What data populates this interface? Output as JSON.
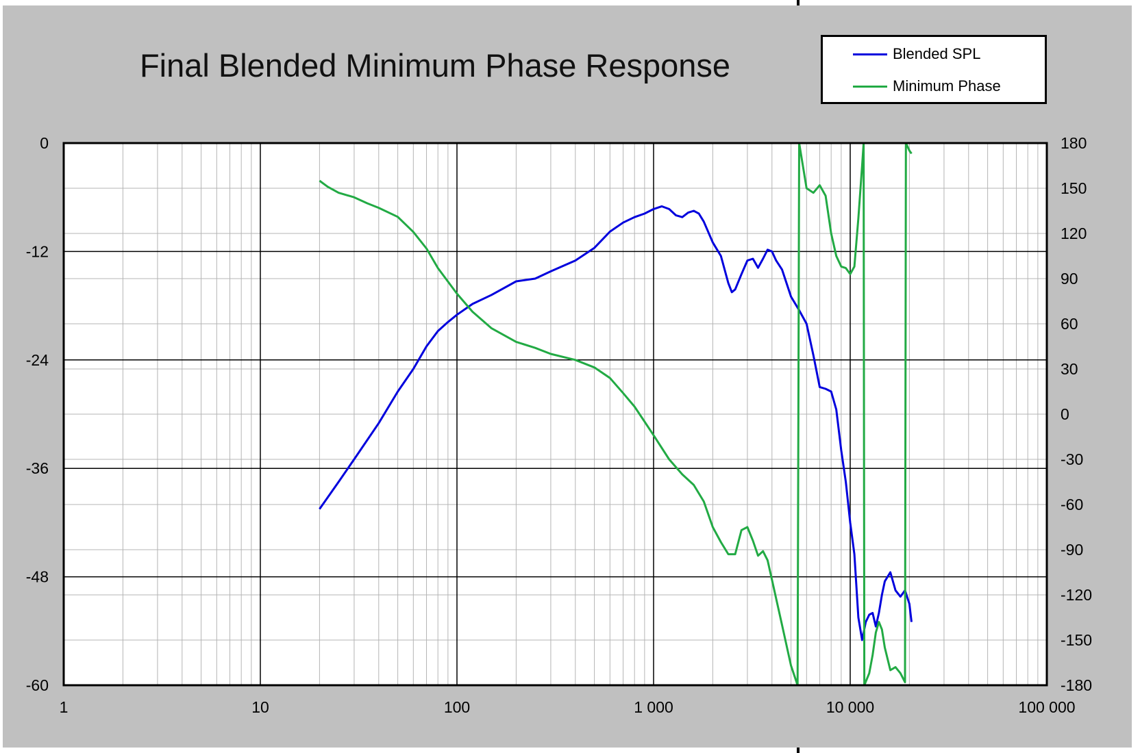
{
  "chart_data": {
    "type": "line",
    "title": "Final Blended Minimum Phase Response",
    "xlabel": "",
    "ylabel": "",
    "y2label": "",
    "x_scale": "log",
    "xlim": [
      1,
      100000
    ],
    "ylim": [
      -60,
      0
    ],
    "y2lim": [
      -180,
      180
    ],
    "x_tick_values": [
      1,
      10,
      100,
      1000,
      10000,
      100000
    ],
    "x_tick_labels": [
      "1",
      "10",
      "100",
      "1 000",
      "10 000",
      "100 000"
    ],
    "y_ticks": [
      0,
      -12,
      -24,
      -36,
      -48,
      -60
    ],
    "y2_ticks": [
      180,
      150,
      120,
      90,
      60,
      30,
      0,
      -30,
      -60,
      -90,
      -120,
      -150,
      -180
    ],
    "grid": true,
    "legend_position": "top-right",
    "series": [
      {
        "name": "Blended SPL",
        "axis": "left",
        "color": "#0000dd",
        "points": [
          [
            20,
            -40.5
          ],
          [
            25,
            -37.5
          ],
          [
            30,
            -35
          ],
          [
            40,
            -31
          ],
          [
            50,
            -27.5
          ],
          [
            60,
            -25
          ],
          [
            70,
            -22.5
          ],
          [
            80,
            -20.8
          ],
          [
            90,
            -19.8
          ],
          [
            100,
            -19
          ],
          [
            120,
            -17.8
          ],
          [
            150,
            -16.8
          ],
          [
            200,
            -15.3
          ],
          [
            250,
            -15
          ],
          [
            300,
            -14.2
          ],
          [
            400,
            -13
          ],
          [
            500,
            -11.6
          ],
          [
            600,
            -9.8
          ],
          [
            700,
            -8.8
          ],
          [
            800,
            -8.2
          ],
          [
            900,
            -7.8
          ],
          [
            1000,
            -7.3
          ],
          [
            1100,
            -7
          ],
          [
            1200,
            -7.3
          ],
          [
            1300,
            -8
          ],
          [
            1400,
            -8.2
          ],
          [
            1500,
            -7.7
          ],
          [
            1600,
            -7.5
          ],
          [
            1700,
            -7.8
          ],
          [
            1800,
            -8.7
          ],
          [
            2000,
            -11
          ],
          [
            2200,
            -12.5
          ],
          [
            2400,
            -15.5
          ],
          [
            2500,
            -16.5
          ],
          [
            2600,
            -16.2
          ],
          [
            2800,
            -14.5
          ],
          [
            3000,
            -13
          ],
          [
            3200,
            -12.8
          ],
          [
            3400,
            -13.8
          ],
          [
            3600,
            -12.8
          ],
          [
            3800,
            -11.8
          ],
          [
            4000,
            -12
          ],
          [
            4200,
            -13
          ],
          [
            4500,
            -14
          ],
          [
            5000,
            -17
          ],
          [
            5500,
            -18.5
          ],
          [
            6000,
            -20
          ],
          [
            6500,
            -23.5
          ],
          [
            7000,
            -27
          ],
          [
            7500,
            -27.2
          ],
          [
            8000,
            -27.5
          ],
          [
            8500,
            -29.5
          ],
          [
            9000,
            -34
          ],
          [
            9500,
            -37.5
          ],
          [
            10000,
            -42
          ],
          [
            10500,
            -45.5
          ],
          [
            11000,
            -52.5
          ],
          [
            11500,
            -55
          ],
          [
            12000,
            -53
          ],
          [
            12500,
            -52.2
          ],
          [
            13000,
            -52
          ],
          [
            13500,
            -53.5
          ],
          [
            14000,
            -52
          ],
          [
            14500,
            -50
          ],
          [
            15000,
            -48.5
          ],
          [
            16000,
            -47.5
          ],
          [
            17000,
            -49.5
          ],
          [
            18000,
            -50.2
          ],
          [
            19000,
            -49.5
          ],
          [
            20000,
            -51
          ],
          [
            20500,
            -53
          ]
        ]
      },
      {
        "name": "Minimum Phase",
        "axis": "right",
        "color": "#22aa44",
        "points": [
          [
            20,
            155
          ],
          [
            22,
            151
          ],
          [
            25,
            147
          ],
          [
            30,
            144
          ],
          [
            35,
            140
          ],
          [
            40,
            137
          ],
          [
            50,
            131
          ],
          [
            60,
            121
          ],
          [
            70,
            110
          ],
          [
            80,
            97
          ],
          [
            90,
            88
          ],
          [
            100,
            80
          ],
          [
            120,
            68
          ],
          [
            150,
            57
          ],
          [
            200,
            48
          ],
          [
            250,
            44
          ],
          [
            300,
            40
          ],
          [
            400,
            36
          ],
          [
            500,
            31
          ],
          [
            600,
            24
          ],
          [
            700,
            14
          ],
          [
            800,
            5
          ],
          [
            900,
            -5
          ],
          [
            1000,
            -14
          ],
          [
            1200,
            -30
          ],
          [
            1400,
            -40
          ],
          [
            1600,
            -47
          ],
          [
            1800,
            -58
          ],
          [
            2000,
            -75
          ],
          [
            2200,
            -85
          ],
          [
            2400,
            -93
          ],
          [
            2600,
            -93
          ],
          [
            2800,
            -77
          ],
          [
            3000,
            -75
          ],
          [
            3200,
            -84
          ],
          [
            3400,
            -94
          ],
          [
            3600,
            -91
          ],
          [
            3800,
            -97
          ],
          [
            4000,
            -110
          ],
          [
            4500,
            -140
          ],
          [
            5000,
            -167
          ],
          [
            5400,
            -180
          ],
          [
            5500,
            180
          ],
          [
            6000,
            150
          ],
          [
            6500,
            147
          ],
          [
            7000,
            152
          ],
          [
            7500,
            145
          ],
          [
            8000,
            120
          ],
          [
            8500,
            105
          ],
          [
            9000,
            98
          ],
          [
            9500,
            97
          ],
          [
            10000,
            93
          ],
          [
            10500,
            98
          ],
          [
            11000,
            130
          ],
          [
            11500,
            165
          ],
          [
            11700,
            180
          ],
          [
            11800,
            -180
          ],
          [
            12500,
            -172
          ],
          [
            13000,
            -160
          ],
          [
            13500,
            -145
          ],
          [
            14000,
            -138
          ],
          [
            14500,
            -143
          ],
          [
            15000,
            -155
          ],
          [
            16000,
            -170
          ],
          [
            17000,
            -168
          ],
          [
            18000,
            -172
          ],
          [
            19000,
            -178
          ],
          [
            19200,
            180
          ],
          [
            20000,
            175
          ],
          [
            20500,
            173
          ]
        ]
      }
    ]
  }
}
